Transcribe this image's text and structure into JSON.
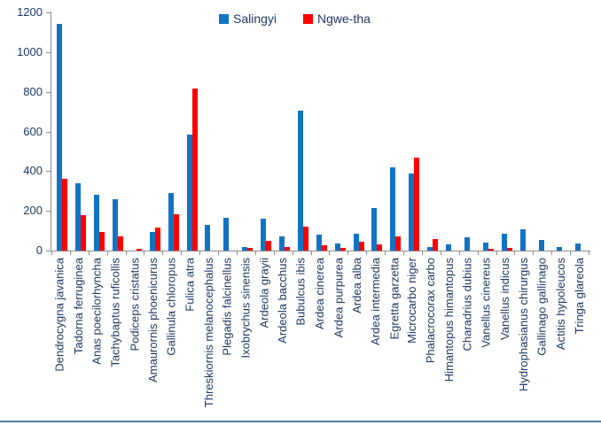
{
  "colors": {
    "series1": "#1173c4",
    "series2": "#ff0000",
    "axis": "#8c8c8c",
    "text": "#1f3864",
    "bottom_border": "#4e80b0",
    "background": "#ffffff"
  },
  "legend": {
    "salingyi_label": "Salingyi",
    "ngwetha_label": "Ngwe-tha"
  },
  "chart_data": {
    "type": "bar",
    "title": "",
    "xlabel": "",
    "ylabel": "",
    "ylim": [
      0,
      1200
    ],
    "ytick_step": 200,
    "ytick_labels": [
      "0",
      "200",
      "400",
      "600",
      "800",
      "1000",
      "1200"
    ],
    "grid": false,
    "legend_position": "top-center",
    "categories": [
      "Dendrocygna javanica",
      "Tadorna ferruginea",
      "Anas poecilorhyncha",
      "Tachybaptus ruficollis",
      "Podiceps cristatus",
      "Amaurornis phoenicurus",
      "Gallinula chloropus",
      "Fulica atra",
      "Threskiornis melanocephalus",
      "Plegadis falcinellus",
      "Ixobrychus sinensis",
      "Ardeola grayii",
      "Ardeola bacchus",
      "Bubulcus ibis",
      "Ardea cinerea",
      "Ardea purpurea",
      "Ardea alba",
      "Ardea intermedia",
      "Egretta garzetta",
      "Microcarbo niger",
      "Phalacrocorax carbo",
      "Himantopus himantopus",
      "Charadrius dubius",
      "Vanellus cinereus",
      "Vanellus indicus",
      "Hydrophasianus chirurgus",
      "Gallinago gallinago",
      "Actitis hypoleucos",
      "Tringa glareola"
    ],
    "series": [
      {
        "name": "Salingyi",
        "color": "#1173c4",
        "values": [
          1140,
          340,
          280,
          260,
          0,
          95,
          290,
          585,
          130,
          165,
          20,
          160,
          70,
          705,
          80,
          35,
          85,
          215,
          420,
          390,
          20,
          30,
          65,
          40,
          85,
          105,
          55,
          20,
          35
        ]
      },
      {
        "name": "Ngwe-tha",
        "color": "#ff0000",
        "values": [
          360,
          180,
          95,
          70,
          10,
          115,
          185,
          815,
          0,
          0,
          15,
          50,
          20,
          120,
          25,
          15,
          45,
          30,
          70,
          470,
          60,
          0,
          0,
          10,
          15,
          0,
          0,
          0,
          0
        ]
      }
    ]
  }
}
